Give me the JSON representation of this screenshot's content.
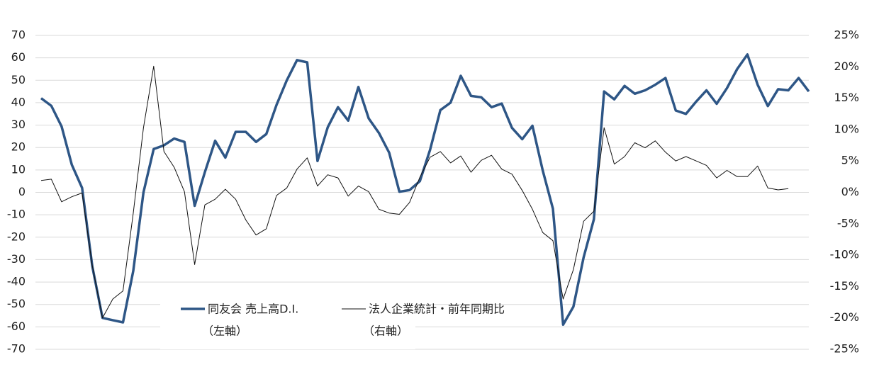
{
  "chart_data": {
    "type": "line",
    "ylim": [
      -70,
      70
    ],
    "yticks": [
      -70,
      -60,
      -50,
      -40,
      -30,
      -20,
      -10,
      0,
      10,
      20,
      30,
      40,
      50,
      60,
      70
    ],
    "y2lim": [
      -25,
      25
    ],
    "y2ticks": [
      {
        "value": -25,
        "label": "-25%"
      },
      {
        "value": -20,
        "label": "-20%"
      },
      {
        "value": -15,
        "label": "-15%"
      },
      {
        "value": -10,
        "label": "-10%"
      },
      {
        "value": -5,
        "label": "-5%"
      },
      {
        "value": 0,
        "label": "0%"
      },
      {
        "value": 5,
        "label": "5%"
      },
      {
        "value": 10,
        "label": "10%"
      },
      {
        "value": 15,
        "label": "15%"
      },
      {
        "value": 20,
        "label": "20%"
      },
      {
        "value": 25,
        "label": "25%"
      }
    ],
    "grid": true,
    "series": [
      {
        "name": "同友会 売上高D.I.",
        "legend_note": "（左軸）",
        "color": "#2e5686",
        "axis": "y",
        "values": [
          42,
          38.6,
          29.4,
          12.3,
          2,
          -33,
          -56,
          -57,
          -58,
          -35,
          0,
          19.3,
          21,
          24,
          22.5,
          -6,
          9,
          23,
          15.5,
          27,
          27,
          22.5,
          26,
          39,
          50,
          59,
          58,
          14,
          29,
          38,
          32,
          47,
          33,
          26.5,
          17.7,
          0.3,
          1,
          5,
          19,
          36.7,
          40,
          52,
          43,
          42.4,
          38,
          39.6,
          28.8,
          23.7,
          29.7,
          9.8,
          -7.3,
          -59,
          -51,
          -29,
          -12,
          45,
          41.5,
          47.5,
          44,
          45.5,
          48,
          51,
          36.5,
          35,
          40.5,
          45.5,
          39.5,
          46.5,
          55,
          61.5,
          48,
          38.5,
          46,
          45.5,
          51,
          45
        ]
      },
      {
        "name": "法人企業統計・前年同期比",
        "legend_note": "（右軸）",
        "color": "#111111",
        "axis": "y2",
        "values": [
          1.9,
          2.1,
          -1.5,
          -0.7,
          -0.1,
          -11.7,
          -20,
          -17,
          -15.7,
          -3.3,
          10.3,
          20.1,
          6.5,
          4,
          0.1,
          -11.5,
          -2,
          -1.1,
          0.5,
          -1.1,
          -4.4,
          -6.8,
          -5.8,
          -0.5,
          0.7,
          3.7,
          5.5,
          1,
          2.8,
          2.3,
          -0.6,
          1,
          0.1,
          -2.7,
          -3.3,
          -3.5,
          -1.6,
          2.4,
          5.6,
          6.5,
          4.7,
          5.8,
          3.2,
          5.1,
          5.9,
          3.7,
          2.9,
          0.3,
          -2.7,
          -6.4,
          -7.7,
          -17,
          -12.3,
          -4.6,
          -3,
          10.3,
          4.5,
          5.7,
          7.9,
          7.1,
          8.2,
          6.4,
          5,
          5.7,
          5,
          4.3,
          2.3,
          3.5,
          2.5,
          2.5,
          4.2,
          0.7,
          0.4,
          0.6,
          null,
          null
        ]
      }
    ]
  }
}
